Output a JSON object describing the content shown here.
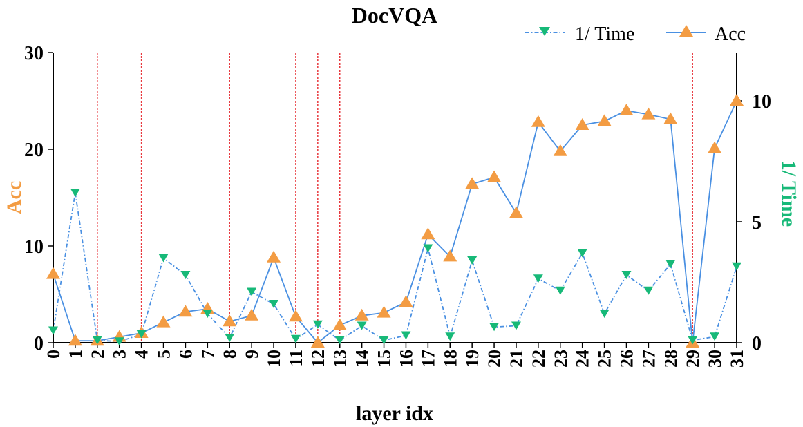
{
  "chart_data": {
    "type": "line",
    "title": "DocVQA",
    "xlabel": "layer idx",
    "ylabel_left": "Acc",
    "ylabel_right": "1/ Time",
    "x": [
      0,
      1,
      2,
      3,
      4,
      5,
      6,
      7,
      8,
      9,
      10,
      11,
      12,
      13,
      14,
      15,
      16,
      17,
      18,
      19,
      20,
      21,
      22,
      23,
      24,
      25,
      26,
      27,
      28,
      29,
      30,
      31
    ],
    "ylim_left": [
      0,
      30
    ],
    "ylim_right": [
      0,
      12
    ],
    "yticks_left": [
      0,
      10,
      20,
      30
    ],
    "yticks_right": [
      0,
      5,
      10
    ],
    "series": [
      {
        "name": "Acc",
        "axis": "left",
        "color": "#4a90e2",
        "marker_color": "#f39c43",
        "marker": "triangle-up",
        "values": [
          7.1,
          0.2,
          0.2,
          0.6,
          1.0,
          2.1,
          3.2,
          3.5,
          2.2,
          2.8,
          8.8,
          2.7,
          0.0,
          1.8,
          2.8,
          3.1,
          4.2,
          11.2,
          8.9,
          16.4,
          17.1,
          13.4,
          22.8,
          19.8,
          22.5,
          22.9,
          24.0,
          23.6,
          23.1,
          0.0,
          20.1,
          25.0
        ]
      },
      {
        "name": "1/ Time",
        "axis": "right",
        "color": "#4a90e2",
        "marker_color": "#17b978",
        "marker": "triangle-down",
        "values": [
          0.5,
          6.2,
          0.1,
          0.05,
          0.35,
          3.5,
          2.8,
          1.2,
          0.2,
          2.1,
          1.6,
          0.15,
          0.75,
          0.1,
          0.7,
          0.1,
          0.3,
          3.9,
          0.25,
          3.4,
          0.65,
          0.7,
          2.65,
          2.15,
          3.7,
          1.2,
          2.8,
          2.15,
          3.25,
          0.1,
          0.25,
          3.15
        ]
      }
    ],
    "vlines": [
      2,
      4,
      8,
      11,
      12,
      13,
      29
    ],
    "vline_color": "#e8383d",
    "legend_position": "top-right",
    "grid": false
  }
}
